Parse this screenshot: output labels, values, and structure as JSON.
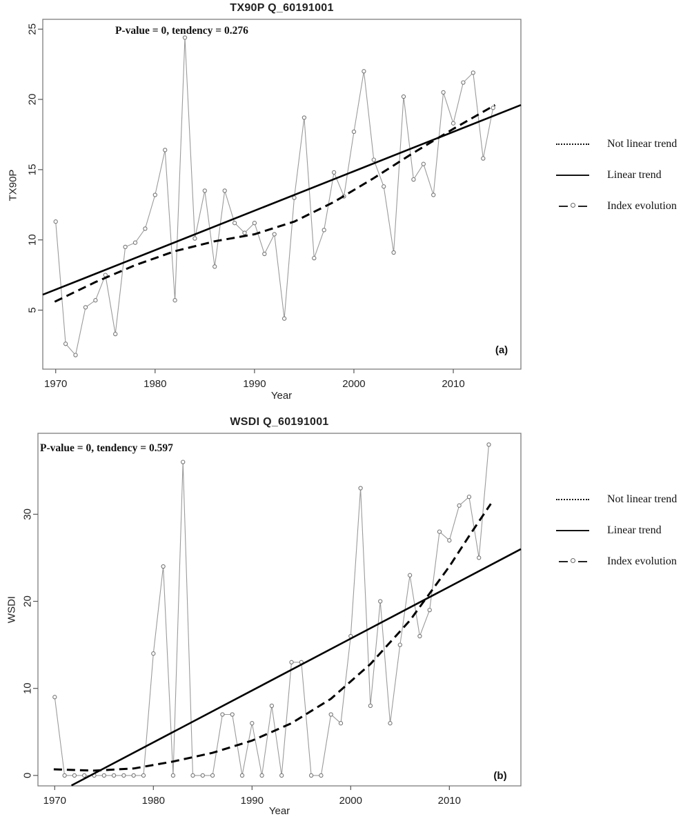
{
  "page": {
    "background": "#ffffff"
  },
  "colors": {
    "index_line": "#9a9a9a",
    "marker_stroke": "#757575",
    "marker_fill": "#ffffff",
    "trend": "#000000",
    "box_border": "#7d7d7d",
    "tick": "#555555",
    "text": "#222222"
  },
  "legend": {
    "items": [
      {
        "label": "Not linear trend",
        "style": "dotted"
      },
      {
        "label": "Linear trend",
        "style": "solid"
      },
      {
        "label": "Index evolution",
        "style": "dash-circle"
      }
    ]
  },
  "chart_data": [
    {
      "id": "a",
      "type": "line",
      "title": "TX90P Q_60191001",
      "annotation": "P-value = 0, tendency = 0.276",
      "corner_label": "(a)",
      "xlabel": "Year",
      "ylabel": "TX90P",
      "x_ticks": [
        1970,
        1980,
        1990,
        2000,
        2010
      ],
      "y_ticks": [
        5,
        10,
        15,
        20,
        25
      ],
      "xlim": [
        1968.7,
        2016.8
      ],
      "ylim": [
        0.8,
        25.7
      ],
      "grid": false,
      "legend_position": "right-outside",
      "x": [
        1970,
        1971,
        1972,
        1973,
        1974,
        1975,
        1976,
        1977,
        1978,
        1979,
        1980,
        1981,
        1982,
        1983,
        1984,
        1985,
        1986,
        1987,
        1988,
        1989,
        1990,
        1991,
        1992,
        1993,
        1994,
        1995,
        1996,
        1997,
        1998,
        1999,
        2000,
        2001,
        2002,
        2003,
        2004,
        2005,
        2006,
        2007,
        2008,
        2009,
        2010,
        2011,
        2012,
        2013,
        2014
      ],
      "series": [
        {
          "name": "Index evolution",
          "style": "index",
          "values": [
            11.3,
            2.6,
            1.8,
            5.2,
            5.7,
            7.5,
            3.3,
            9.5,
            9.8,
            10.8,
            13.2,
            16.4,
            5.7,
            24.4,
            10.1,
            13.5,
            8.1,
            13.5,
            11.2,
            10.5,
            11.2,
            9.0,
            10.4,
            4.4,
            13.0,
            18.7,
            8.7,
            10.7,
            14.8,
            13.1,
            17.7,
            22.0,
            15.7,
            13.8,
            9.1,
            20.2,
            14.3,
            15.4,
            13.2,
            20.5,
            18.3,
            21.2,
            21.9,
            15.8,
            19.4
          ]
        },
        {
          "name": "Linear trend",
          "style": "solid",
          "points": [
            [
              1968.7,
              6.1
            ],
            [
              2016.8,
              19.6
            ]
          ]
        },
        {
          "name": "Not linear trend",
          "style": "dashed",
          "points": [
            [
              1969.9,
              5.6
            ],
            [
              1974,
              7.0
            ],
            [
              1978,
              8.2
            ],
            [
              1982,
              9.2
            ],
            [
              1986,
              9.9
            ],
            [
              1990,
              10.4
            ],
            [
              1994,
              11.3
            ],
            [
              1998,
              12.7
            ],
            [
              2002,
              14.4
            ],
            [
              2006,
              16.2
            ],
            [
              2010,
              17.9
            ],
            [
              2014.2,
              19.6
            ]
          ]
        }
      ]
    },
    {
      "id": "b",
      "type": "line",
      "title": "WSDI Q_60191001",
      "annotation": "P-value = 0, tendency = 0.597",
      "corner_label": "(b)",
      "xlabel": "Year",
      "ylabel": "WSDI",
      "x_ticks": [
        1970,
        1980,
        1990,
        2000,
        2010
      ],
      "y_ticks": [
        0,
        10,
        20,
        30
      ],
      "xlim": [
        1968.3,
        2017.25
      ],
      "ylim": [
        -1.2,
        39.3
      ],
      "grid": false,
      "legend_position": "right-outside",
      "x": [
        1970,
        1971,
        1972,
        1973,
        1974,
        1975,
        1976,
        1977,
        1978,
        1979,
        1980,
        1981,
        1982,
        1983,
        1984,
        1985,
        1986,
        1987,
        1988,
        1989,
        1990,
        1991,
        1992,
        1993,
        1994,
        1995,
        1996,
        1997,
        1998,
        1999,
        2000,
        2001,
        2002,
        2003,
        2004,
        2005,
        2006,
        2007,
        2008,
        2009,
        2010,
        2011,
        2012,
        2013,
        2014
      ],
      "series": [
        {
          "name": "Index evolution",
          "style": "index",
          "values": [
            9,
            0,
            0,
            0,
            0,
            0,
            0,
            0,
            0,
            0,
            14,
            24,
            0,
            36,
            0,
            0,
            0,
            7,
            7,
            0,
            6,
            0,
            8,
            0,
            13,
            13,
            0,
            0,
            7,
            6,
            16,
            33,
            8,
            20,
            6,
            15,
            23,
            16,
            19,
            28,
            27,
            31,
            32,
            25,
            38
          ]
        },
        {
          "name": "Linear trend",
          "style": "solid",
          "points": [
            [
              1971.7,
              -1.15
            ],
            [
              2017.25,
              26.0
            ]
          ]
        },
        {
          "name": "Not linear trend",
          "style": "dashed",
          "points": [
            [
              1969.9,
              0.7
            ],
            [
              1974,
              0.55
            ],
            [
              1978,
              0.8
            ],
            [
              1982,
              1.6
            ],
            [
              1986,
              2.6
            ],
            [
              1990,
              4.0
            ],
            [
              1994,
              6.0
            ],
            [
              1998,
              8.8
            ],
            [
              2002,
              12.8
            ],
            [
              2006,
              17.8
            ],
            [
              2010,
              24.0
            ],
            [
              2012,
              27.5
            ],
            [
              2014.2,
              31.2
            ]
          ]
        }
      ]
    }
  ]
}
